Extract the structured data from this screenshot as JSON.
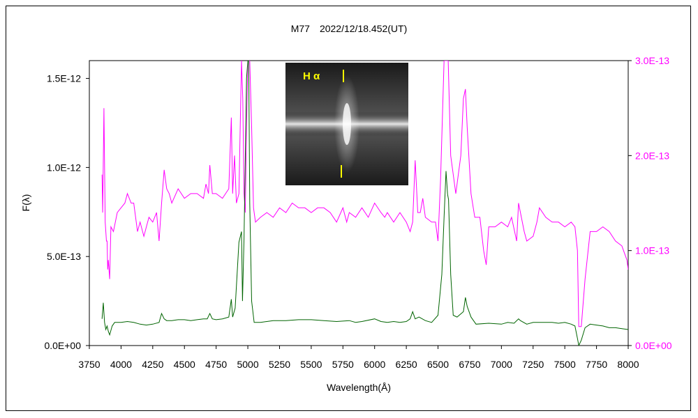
{
  "chart_data": {
    "type": "line",
    "title": "M77　2022/12/18.452(UT)",
    "xlabel": "Wavelength(Å)",
    "ylabel": "F(λ)",
    "x_ticks": [
      "3750",
      "4000",
      "4250",
      "4500",
      "4750",
      "5000",
      "5250",
      "5500",
      "5750",
      "6000",
      "6250",
      "6500",
      "6750",
      "7000",
      "7250",
      "7500",
      "7750",
      "8000"
    ],
    "y_left_ticks": [
      "0.0E+00",
      "5.0E-13",
      "1.0E-12",
      "1.5E-12"
    ],
    "y_right_ticks": [
      "0.0E+00",
      "1.0E-13",
      "2.0E-13",
      "3.0E-13"
    ],
    "xlim": [
      3750,
      8000
    ],
    "ylim_left": [
      0,
      1.6e-12
    ],
    "ylim_right": [
      0,
      3e-13
    ],
    "grid": false,
    "colors": {
      "left_series": "#006400",
      "right_series": "#ff00ff",
      "right_axis": "#ff00ff"
    },
    "series": [
      {
        "axis": "left",
        "x": [
          3850,
          3860,
          3870,
          3880,
          3890,
          3900,
          3910,
          3930,
          3950,
          4000,
          4050,
          4100,
          4150,
          4200,
          4250,
          4300,
          4320,
          4340,
          4360,
          4400,
          4450,
          4500,
          4550,
          4600,
          4650,
          4680,
          4700,
          4720,
          4750,
          4800,
          4850,
          4870,
          4880,
          4900,
          4930,
          4950,
          4958,
          4970,
          4990,
          5000,
          5007,
          5015,
          5030,
          5050,
          5100,
          5150,
          5200,
          5300,
          5400,
          5500,
          5600,
          5700,
          5800,
          5850,
          5900,
          6000,
          6050,
          6100,
          6150,
          6200,
          6250,
          6280,
          6300,
          6320,
          6350,
          6400,
          6450,
          6500,
          6530,
          6548,
          6563,
          6575,
          6583,
          6600,
          6620,
          6650,
          6700,
          6716,
          6730,
          6760,
          6800,
          6900,
          7000,
          7050,
          7100,
          7135,
          7150,
          7200,
          7250,
          7300,
          7400,
          7450,
          7500,
          7550,
          7580,
          7600,
          7610,
          7630,
          7660,
          7700,
          7750,
          7800,
          7850,
          7900,
          7950,
          8000
        ],
        "y": [
          1.5e-13,
          2.4e-13,
          1.3e-13,
          9e-14,
          1.1e-13,
          8e-14,
          6e-14,
          1.1e-13,
          1.3e-13,
          1.3e-13,
          1.35e-13,
          1.3e-13,
          1.2e-13,
          1.15e-13,
          1.2e-13,
          1.3e-13,
          1.8e-13,
          1.5e-13,
          1.4e-13,
          1.4e-13,
          1.45e-13,
          1.45e-13,
          1.4e-13,
          1.45e-13,
          1.5e-13,
          1.5e-13,
          1.8e-13,
          1.5e-13,
          1.45e-13,
          1.5e-13,
          1.6e-13,
          2.6e-13,
          1.6e-13,
          2.1e-13,
          5.8e-13,
          6.4e-13,
          2.5e-13,
          6e-13,
          1.5e-12,
          1.6e-12,
          1.6e-12,
          8e-13,
          2.5e-13,
          1.3e-13,
          1.3e-13,
          1.35e-13,
          1.4e-13,
          1.4e-13,
          1.45e-13,
          1.45e-13,
          1.4e-13,
          1.35e-13,
          1.4e-13,
          1.3e-13,
          1.35e-13,
          1.5e-13,
          1.35e-13,
          1.3e-13,
          1.35e-13,
          1.3e-13,
          1.35e-13,
          1.5e-13,
          1.9e-13,
          1.5e-13,
          1.6e-13,
          1.4e-13,
          1.3e-13,
          1.7e-13,
          4e-13,
          7.2e-13,
          9.8e-13,
          8.5e-13,
          8.2e-13,
          4e-13,
          1.7e-13,
          1.6e-13,
          1.9e-13,
          2.7e-13,
          2.2e-13,
          1.6e-13,
          1.2e-13,
          1.25e-13,
          1.2e-13,
          1.3e-13,
          1.25e-13,
          1.5e-13,
          1.4e-13,
          1.2e-13,
          1.3e-13,
          1.3e-13,
          1.3e-13,
          1.25e-13,
          1.3e-13,
          1.2e-13,
          1.1e-13,
          4e-14,
          0,
          3e-14,
          1e-13,
          1.2e-13,
          1.15e-13,
          1.1e-13,
          1e-13,
          1e-13,
          9.5e-14,
          9e-14
        ]
      },
      {
        "axis": "right",
        "x": [
          3850,
          3855,
          3865,
          3875,
          3885,
          3890,
          3895,
          3900,
          3910,
          3920,
          3940,
          3970,
          4000,
          4030,
          4050,
          4080,
          4100,
          4130,
          4150,
          4180,
          4200,
          4220,
          4250,
          4280,
          4300,
          4320,
          4340,
          4360,
          4380,
          4400,
          4450,
          4500,
          4550,
          4600,
          4650,
          4670,
          4690,
          4700,
          4720,
          4750,
          4800,
          4850,
          4870,
          4880,
          4895,
          4910,
          4930,
          4950,
          4960,
          4970,
          4980,
          4990,
          5000,
          5007,
          5015,
          5030,
          5045,
          5060,
          5100,
          5150,
          5200,
          5250,
          5300,
          5350,
          5400,
          5450,
          5500,
          5550,
          5600,
          5650,
          5700,
          5750,
          5780,
          5800,
          5850,
          5900,
          5950,
          6000,
          6050,
          6080,
          6100,
          6150,
          6200,
          6250,
          6280,
          6300,
          6320,
          6340,
          6360,
          6380,
          6400,
          6450,
          6480,
          6500,
          6520,
          6548,
          6563,
          6580,
          6600,
          6640,
          6680,
          6700,
          6716,
          6730,
          6760,
          6790,
          6830,
          6860,
          6880,
          6900,
          6950,
          7000,
          7050,
          7080,
          7120,
          7135,
          7150,
          7180,
          7200,
          7250,
          7280,
          7300,
          7350,
          7400,
          7450,
          7500,
          7550,
          7580,
          7600,
          7610,
          7630,
          7660,
          7700,
          7750,
          7800,
          7850,
          7900,
          7950,
          7990,
          8000
        ],
        "y": [
          1.8e-13,
          1.4e-13,
          2.5e-13,
          1.3e-13,
          1.1e-13,
          1.1e-13,
          8e-14,
          9e-14,
          7e-14,
          1.25e-13,
          1.2e-13,
          1.4e-13,
          1.45e-13,
          1.5e-13,
          1.6e-13,
          1.5e-13,
          1.5e-13,
          1.2e-13,
          1.3e-13,
          1.15e-13,
          1.25e-13,
          1.35e-13,
          1.3e-13,
          1.4e-13,
          1.1e-13,
          1.5e-13,
          1.85e-13,
          1.65e-13,
          1.6e-13,
          1.5e-13,
          1.65e-13,
          1.55e-13,
          1.6e-13,
          1.6e-13,
          1.55e-13,
          1.7e-13,
          1.6e-13,
          1.9e-13,
          1.6e-13,
          1.6e-13,
          1.55e-13,
          1.65e-13,
          2.4e-13,
          1.6e-13,
          2e-13,
          1.5e-13,
          1.6e-13,
          3e-13,
          2.6e-13,
          1.6e-13,
          1.4e-13,
          2.3e-13,
          3e-13,
          3e-13,
          3e-13,
          2.3e-13,
          1.45e-13,
          1.3e-13,
          1.35e-13,
          1.4e-13,
          1.35e-13,
          1.45e-13,
          1.4e-13,
          1.5e-13,
          1.45e-13,
          1.45e-13,
          1.4e-13,
          1.45e-13,
          1.45e-13,
          1.4e-13,
          1.3e-13,
          1.45e-13,
          1.3e-13,
          1.4e-13,
          1.35e-13,
          1.45e-13,
          1.35e-13,
          1.5e-13,
          1.4e-13,
          1.35e-13,
          1.4e-13,
          1.3e-13,
          1.4e-13,
          1.3e-13,
          1.2e-13,
          1.3e-13,
          1.95e-13,
          1.4e-13,
          1.4e-13,
          1.55e-13,
          1.35e-13,
          1.3e-13,
          1.3e-13,
          1.1e-13,
          1.75e-13,
          3e-13,
          3e-13,
          3e-13,
          2e-13,
          1.6e-13,
          2e-13,
          2.6e-13,
          2.7e-13,
          2.3e-13,
          1.6e-13,
          1.35e-13,
          1.35e-13,
          1e-13,
          8.5e-14,
          1.25e-13,
          1.25e-13,
          1.3e-13,
          1.25e-13,
          1.35e-13,
          1.1e-13,
          1.5e-13,
          1.4e-13,
          1.2e-13,
          1.1e-13,
          1.15e-13,
          1.3e-13,
          1.45e-13,
          1.35e-13,
          1.3e-13,
          1.3e-13,
          1.25e-13,
          1.3e-13,
          1.25e-13,
          1e-13,
          2e-14,
          2e-14,
          7e-14,
          1.2e-13,
          1.2e-13,
          1.25e-13,
          1.2e-13,
          1.1e-13,
          1.05e-13,
          9e-14,
          8e-14
        ]
      }
    ]
  },
  "inset": {
    "label": "H α",
    "caption_color": "#ffff00"
  }
}
